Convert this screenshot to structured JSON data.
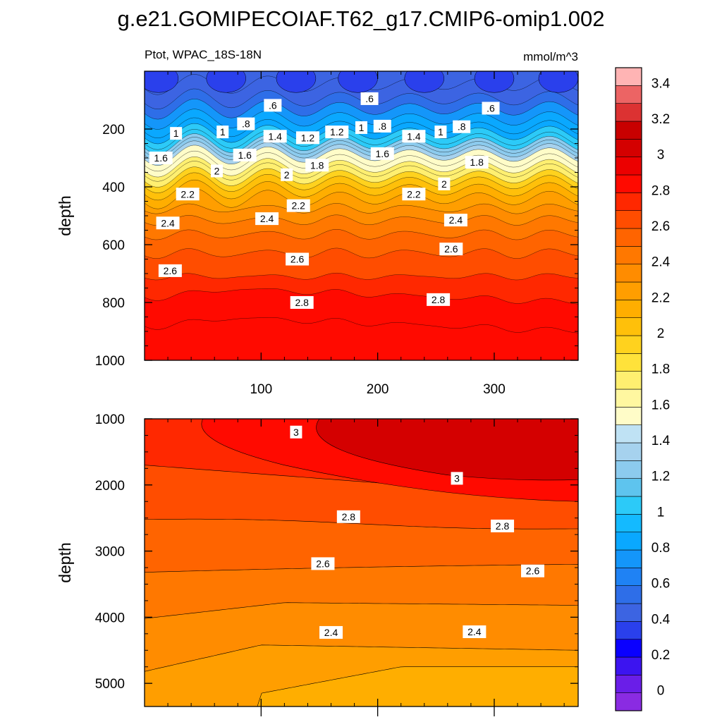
{
  "chart_data": {
    "type": "heatmap",
    "title": "g.e21.GOMIPECOIAF.T62_g17.CMIP6-omip1.002",
    "subtitle_left": "Ptot, WPAC_18S-18N",
    "subtitle_right": "mmol/m^3",
    "panels": [
      {
        "name": "upper",
        "ylabel": "depth",
        "xlim": [
          0,
          372
        ],
        "ylim": [
          1000,
          0
        ],
        "xticks": [
          100,
          200,
          300
        ],
        "yticks": [
          200,
          400,
          600,
          800,
          1000
        ],
        "contour_labels": [
          {
            "text": ".6",
            "x": 110,
            "y": 118
          },
          {
            "text": ".6",
            "x": 193,
            "y": 95
          },
          {
            "text": ".6",
            "x": 297,
            "y": 128
          },
          {
            "text": "1",
            "x": 27,
            "y": 215
          },
          {
            "text": "1",
            "x": 67,
            "y": 210
          },
          {
            "text": ".8",
            "x": 87,
            "y": 182
          },
          {
            "text": "1.4",
            "x": 112,
            "y": 225
          },
          {
            "text": "1.2",
            "x": 140,
            "y": 230
          },
          {
            "text": "1.2",
            "x": 165,
            "y": 210
          },
          {
            "text": "1",
            "x": 186,
            "y": 195
          },
          {
            "text": ".8",
            "x": 204,
            "y": 190
          },
          {
            "text": "1.4",
            "x": 231,
            "y": 225
          },
          {
            "text": "1",
            "x": 254,
            "y": 210
          },
          {
            "text": ".8",
            "x": 272,
            "y": 192
          },
          {
            "text": "1.6",
            "x": 14,
            "y": 300
          },
          {
            "text": "1.6",
            "x": 86,
            "y": 290
          },
          {
            "text": "1.6",
            "x": 204,
            "y": 285
          },
          {
            "text": "1.8",
            "x": 148,
            "y": 325
          },
          {
            "text": "1.8",
            "x": 285,
            "y": 315
          },
          {
            "text": "2",
            "x": 62,
            "y": 345
          },
          {
            "text": "2",
            "x": 122,
            "y": 358
          },
          {
            "text": "2",
            "x": 257,
            "y": 390
          },
          {
            "text": "2.2",
            "x": 37,
            "y": 425
          },
          {
            "text": "2.2",
            "x": 132,
            "y": 465
          },
          {
            "text": "2.2",
            "x": 231,
            "y": 425
          },
          {
            "text": "2.4",
            "x": 20,
            "y": 525
          },
          {
            "text": "2.4",
            "x": 105,
            "y": 510
          },
          {
            "text": "2.4",
            "x": 267,
            "y": 515
          },
          {
            "text": "2.6",
            "x": 22,
            "y": 690
          },
          {
            "text": "2.6",
            "x": 131,
            "y": 650
          },
          {
            "text": "2.6",
            "x": 263,
            "y": 615
          },
          {
            "text": "2.8",
            "x": 135,
            "y": 800
          },
          {
            "text": "2.8",
            "x": 252,
            "y": 790
          }
        ]
      },
      {
        "name": "lower",
        "ylabel": "depth",
        "xlim": [
          0,
          372
        ],
        "ylim": [
          5350,
          1000
        ],
        "yticks": [
          1000,
          2000,
          3000,
          4000,
          5000
        ],
        "contour_labels": [
          {
            "text": "3",
            "x": 130,
            "y": 1200
          },
          {
            "text": "3",
            "x": 268,
            "y": 1900
          },
          {
            "text": "2.8",
            "x": 175,
            "y": 2480
          },
          {
            "text": "2.8",
            "x": 307,
            "y": 2620
          },
          {
            "text": "2.6",
            "x": 153,
            "y": 3190
          },
          {
            "text": "2.6",
            "x": 333,
            "y": 3300
          },
          {
            "text": "2.4",
            "x": 160,
            "y": 4230
          },
          {
            "text": "2.4",
            "x": 283,
            "y": 4220
          }
        ]
      }
    ],
    "colorbar": {
      "levels": [
        0,
        0.2,
        0.4,
        0.6,
        0.8,
        1,
        1.2,
        1.4,
        1.6,
        1.8,
        2,
        2.2,
        2.4,
        2.6,
        2.8,
        3,
        3.2,
        3.4
      ],
      "labels": [
        "0",
        "0.2",
        "0.4",
        "0.6",
        "0.8",
        "1",
        "1.2",
        "1.4",
        "1.6",
        "1.8",
        "2",
        "2.2",
        "2.4",
        "2.6",
        "2.8",
        "3",
        "3.2",
        "3.4"
      ],
      "colors": [
        "#8a2be2",
        "#6a1ee8",
        "#3c14f0",
        "#0a00ff",
        "#2a40ec",
        "#3c64e2",
        "#2e6ee8",
        "#1f82f4",
        "#1496fa",
        "#0aa8ff",
        "#14baff",
        "#2ccaf8",
        "#5ec4ee",
        "#8ccbee",
        "#a6d2ee",
        "#bfe2f4",
        "#fffcc8",
        "#fff7a0",
        "#ffef70",
        "#ffe23a",
        "#ffd21e",
        "#ffc00a",
        "#ffae00",
        "#ff9e00",
        "#ff8c00",
        "#ff7800",
        "#ff6400",
        "#ff4d00",
        "#ff2800",
        "#ff0a00",
        "#ec0000",
        "#d40000",
        "#c80000",
        "#dc3232",
        "#ec6464",
        "#ffb4b4"
      ]
    }
  }
}
